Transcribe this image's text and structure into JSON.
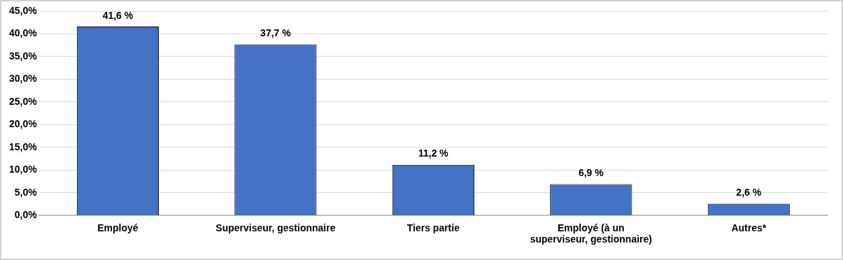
{
  "chart_data": {
    "type": "bar",
    "categories": [
      "Employé",
      "Superviseur, gestionnaire",
      "Tiers partie",
      "Employé (à un superviseur, gestionnaire)",
      "Autres*"
    ],
    "values": [
      41.6,
      37.7,
      11.2,
      6.9,
      2.6
    ],
    "value_labels": [
      "41,6 %",
      "37,7 %",
      "11,2 %",
      "6,9 %",
      "2,6 %"
    ],
    "color": "#4472c4",
    "ylim": [
      0,
      45
    ],
    "yticks": [
      {
        "value": 0,
        "label": "0,0%"
      },
      {
        "value": 5,
        "label": "5,0%"
      },
      {
        "value": 10,
        "label": "10,0%"
      },
      {
        "value": 15,
        "label": "15,0%"
      },
      {
        "value": 20,
        "label": "20,0%"
      },
      {
        "value": 25,
        "label": "25,0%"
      },
      {
        "value": 30,
        "label": "30,0%"
      },
      {
        "value": 35,
        "label": "35,0%"
      },
      {
        "value": 40,
        "label": "40,0%"
      },
      {
        "value": 45,
        "label": "45,0%"
      }
    ],
    "grid": "y",
    "legend": false
  }
}
